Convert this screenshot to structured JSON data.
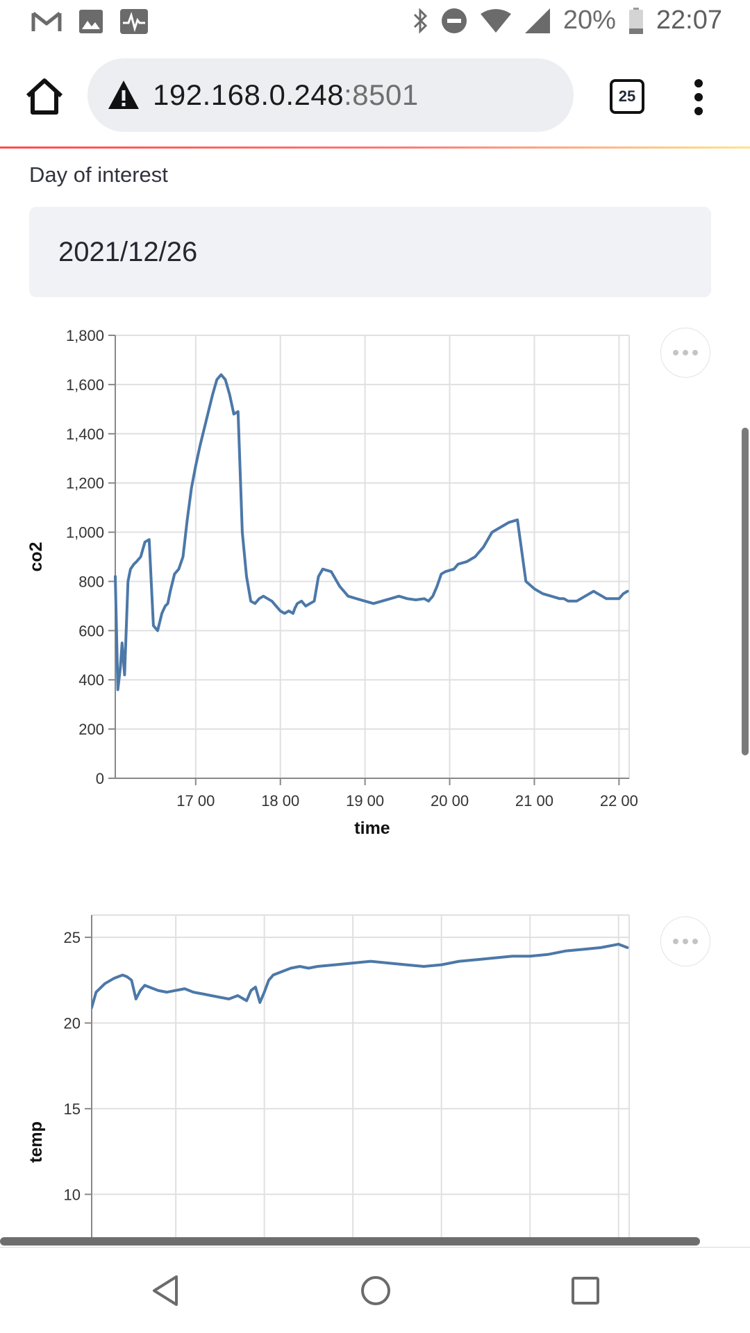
{
  "status_bar": {
    "battery_text": "20%",
    "time": "22:07",
    "left_icons": [
      "gmail-icon",
      "gallery-icon",
      "activity-icon"
    ],
    "right_icons": [
      "bluetooth-icon",
      "do-not-disturb-icon",
      "wifi-icon",
      "cell-signal-icon",
      "battery-icon"
    ]
  },
  "browser": {
    "url_host": "192.168.0.248",
    "url_port": ":8501",
    "tab_count": "25"
  },
  "form": {
    "date_label": "Day of interest",
    "date_value": "2021/12/26"
  },
  "chart_data": [
    {
      "type": "line",
      "title": "",
      "xlabel": "time",
      "ylabel": "co2",
      "x_tick_labels": [
        "17 00",
        "18 00",
        "19 00",
        "20 00",
        "21 00",
        "22 00"
      ],
      "x_ticks_hours": [
        17,
        18,
        19,
        20,
        21,
        22
      ],
      "y_tick_labels": [
        "0",
        "200",
        "400",
        "600",
        "800",
        "1,000",
        "1,200",
        "1,400",
        "1,600",
        "1,800"
      ],
      "y_ticks": [
        0,
        200,
        400,
        600,
        800,
        1000,
        1200,
        1400,
        1600,
        1800
      ],
      "ylim": [
        0,
        1800
      ],
      "xlim_hours": [
        16.05,
        22.12
      ],
      "color": "#4c78a8",
      "series": [
        {
          "name": "co2",
          "x_hours": [
            16.05,
            16.08,
            16.11,
            16.13,
            16.16,
            16.2,
            16.23,
            16.27,
            16.3,
            16.35,
            16.4,
            16.45,
            16.5,
            16.55,
            16.6,
            16.64,
            16.67,
            16.7,
            16.75,
            16.8,
            16.85,
            16.9,
            16.95,
            17.0,
            17.05,
            17.1,
            17.15,
            17.2,
            17.25,
            17.3,
            17.35,
            17.4,
            17.45,
            17.5,
            17.55,
            17.6,
            17.65,
            17.7,
            17.75,
            17.8,
            17.85,
            17.9,
            17.95,
            18.0,
            18.05,
            18.1,
            18.15,
            18.17,
            18.2,
            18.25,
            18.3,
            18.35,
            18.4,
            18.45,
            18.5,
            18.6,
            18.7,
            18.8,
            18.9,
            19.0,
            19.1,
            19.2,
            19.3,
            19.4,
            19.5,
            19.6,
            19.7,
            19.75,
            19.8,
            19.85,
            19.9,
            19.95,
            20.0,
            20.05,
            20.1,
            20.2,
            20.3,
            20.4,
            20.5,
            20.6,
            20.7,
            20.8,
            20.9,
            21.0,
            21.1,
            21.2,
            21.3,
            21.35,
            21.4,
            21.5,
            21.6,
            21.7,
            21.75,
            21.8,
            21.85,
            21.9,
            21.95,
            22.0,
            22.05,
            22.1
          ],
          "values": [
            820,
            360,
            450,
            550,
            420,
            800,
            850,
            870,
            880,
            900,
            960,
            970,
            620,
            600,
            670,
            700,
            710,
            760,
            830,
            850,
            900,
            1050,
            1180,
            1270,
            1350,
            1420,
            1490,
            1560,
            1620,
            1640,
            1620,
            1560,
            1480,
            1490,
            1000,
            820,
            720,
            710,
            730,
            740,
            730,
            720,
            700,
            680,
            670,
            680,
            670,
            690,
            710,
            720,
            700,
            710,
            720,
            820,
            850,
            840,
            780,
            740,
            730,
            720,
            710,
            720,
            730,
            740,
            730,
            725,
            730,
            720,
            740,
            780,
            830,
            840,
            845,
            850,
            870,
            880,
            900,
            940,
            1000,
            1020,
            1040,
            1050,
            800,
            770,
            750,
            740,
            730,
            730,
            720,
            720,
            740,
            760,
            750,
            740,
            730,
            730,
            730,
            730,
            750,
            760
          ]
        }
      ]
    },
    {
      "type": "line",
      "title": "",
      "xlabel": "",
      "ylabel": "temp",
      "y_tick_labels": [
        "10",
        "15",
        "20",
        "25"
      ],
      "y_ticks": [
        10,
        15,
        20,
        25
      ],
      "ylim_visible": [
        7.5,
        26.3
      ],
      "xlim_hours": [
        16.05,
        22.12
      ],
      "color": "#4c78a8",
      "series": [
        {
          "name": "temp",
          "x_hours": [
            16.05,
            16.1,
            16.2,
            16.3,
            16.4,
            16.45,
            16.5,
            16.55,
            16.6,
            16.65,
            16.7,
            16.8,
            16.9,
            17.0,
            17.1,
            17.2,
            17.3,
            17.4,
            17.5,
            17.6,
            17.7,
            17.8,
            17.85,
            17.9,
            17.95,
            18.0,
            18.05,
            18.1,
            18.2,
            18.3,
            18.4,
            18.5,
            18.6,
            18.8,
            19.0,
            19.2,
            19.4,
            19.6,
            19.8,
            20.0,
            20.2,
            20.4,
            20.6,
            20.8,
            21.0,
            21.2,
            21.4,
            21.6,
            21.8,
            22.0,
            22.1
          ],
          "values": [
            20.9,
            21.8,
            22.3,
            22.6,
            22.8,
            22.7,
            22.5,
            21.4,
            21.9,
            22.2,
            22.1,
            21.9,
            21.8,
            21.9,
            22.0,
            21.8,
            21.7,
            21.6,
            21.5,
            21.4,
            21.6,
            21.3,
            21.9,
            22.1,
            21.2,
            21.8,
            22.5,
            22.8,
            23.0,
            23.2,
            23.3,
            23.2,
            23.3,
            23.4,
            23.5,
            23.6,
            23.5,
            23.4,
            23.3,
            23.4,
            23.6,
            23.7,
            23.8,
            23.9,
            23.9,
            24.0,
            24.2,
            24.3,
            24.4,
            24.6,
            24.4
          ]
        }
      ]
    }
  ]
}
